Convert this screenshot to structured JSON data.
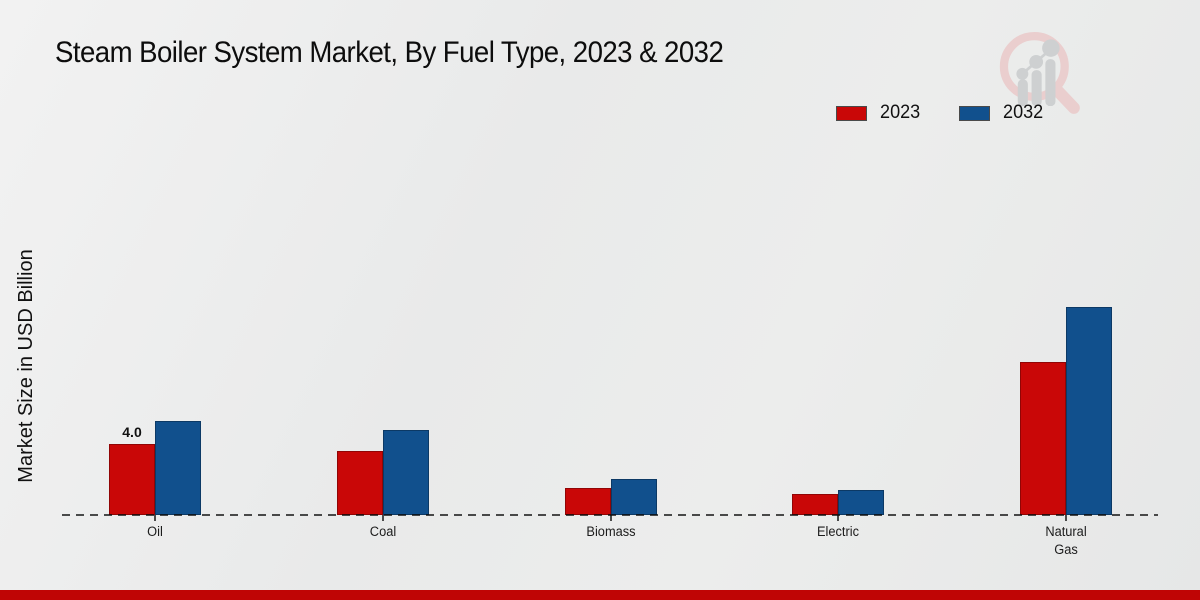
{
  "title": "Steam Boiler System Market, By Fuel Type, 2023 & 2032",
  "ylabel": "Market Size in USD Billion",
  "legend": [
    {
      "label": "2023",
      "color": "#c90707"
    },
    {
      "label": "2032",
      "color": "#11508d"
    }
  ],
  "watermark": {
    "icon": "magnifier-growth-chart-logo"
  },
  "colors": {
    "series_2023": "#c90707",
    "series_2032": "#11508d",
    "footer_bar": "#bf0505",
    "baseline": "#3a3a3a"
  },
  "chart_data": {
    "type": "bar",
    "title": "Steam Boiler System Market, By Fuel Type, 2023 & 2032",
    "xlabel": "",
    "ylabel": "Market Size in USD Billion",
    "categories": [
      "Oil",
      "Coal",
      "Biomass",
      "Electric",
      "Natural Gas"
    ],
    "series": [
      {
        "name": "2023",
        "color": "#c90707",
        "values": [
          4.0,
          3.6,
          1.5,
          1.2,
          8.6
        ]
      },
      {
        "name": "2032",
        "color": "#11508d",
        "values": [
          5.3,
          4.8,
          2.0,
          1.4,
          11.7
        ]
      }
    ],
    "bar_labels": [
      {
        "series": "2023",
        "category": "Oil",
        "text": "4.0"
      }
    ],
    "ylim": [
      0,
      12
    ],
    "grid": false,
    "legend_position": "top-right",
    "baseline_style": "dashed"
  },
  "footer": {
    "color": "#bf0505"
  }
}
